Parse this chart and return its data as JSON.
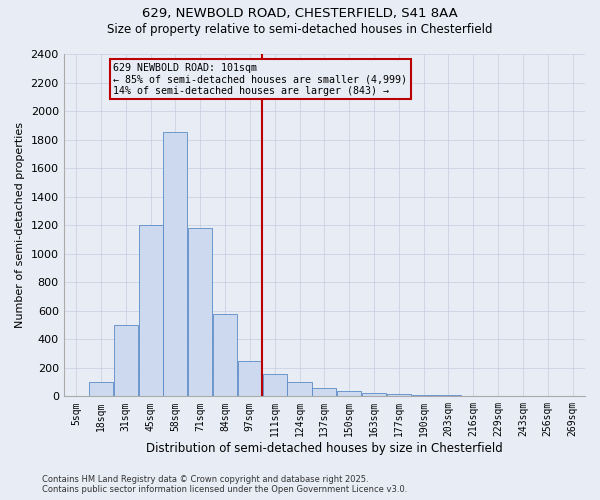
{
  "title1": "629, NEWBOLD ROAD, CHESTERFIELD, S41 8AA",
  "title2": "Size of property relative to semi-detached houses in Chesterfield",
  "xlabel": "Distribution of semi-detached houses by size in Chesterfield",
  "ylabel": "Number of semi-detached properties",
  "footnote": "Contains HM Land Registry data © Crown copyright and database right 2025.\nContains public sector information licensed under the Open Government Licence v3.0.",
  "categories": [
    "5sqm",
    "18sqm",
    "31sqm",
    "45sqm",
    "58sqm",
    "71sqm",
    "84sqm",
    "97sqm",
    "111sqm",
    "124sqm",
    "137sqm",
    "150sqm",
    "163sqm",
    "177sqm",
    "190sqm",
    "203sqm",
    "216sqm",
    "229sqm",
    "243sqm",
    "256sqm",
    "269sqm"
  ],
  "bar_values": [
    3,
    100,
    500,
    1200,
    1850,
    1180,
    575,
    250,
    160,
    100,
    55,
    35,
    25,
    18,
    10,
    6,
    4,
    2,
    2,
    1,
    0
  ],
  "bar_color": "#ccd9ee",
  "bar_edge_color": "#5b8ac7",
  "grid_color": "#c5cfe0",
  "bg_color": "#e8ecf5",
  "vline_color": "#bb0000",
  "annotation_text": "629 NEWBOLD ROAD: 101sqm\n← 85% of semi-detached houses are smaller (4,999)\n14% of semi-detached houses are larger (843) →",
  "annotation_box_color": "#bb0000",
  "ylim": [
    0,
    2400
  ],
  "yticks": [
    0,
    200,
    400,
    600,
    800,
    1000,
    1200,
    1400,
    1600,
    1800,
    2000,
    2200,
    2400
  ],
  "vline_pos": 7.5
}
